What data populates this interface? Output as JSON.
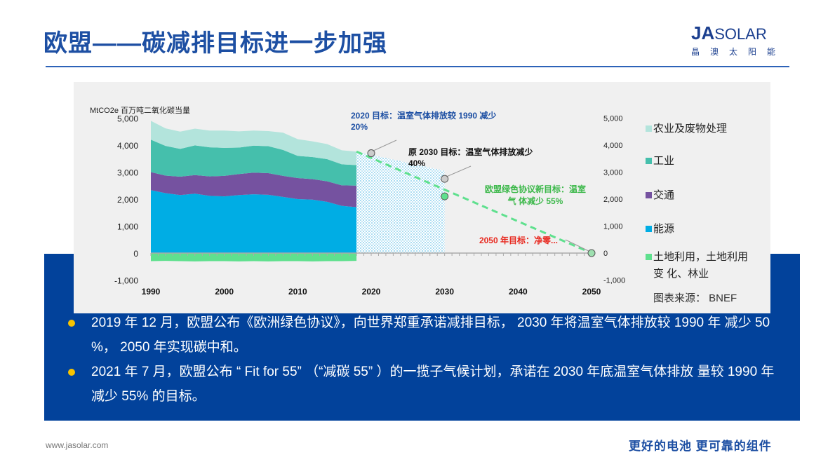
{
  "header": {
    "title": "欧盟——碳减排目标进一步加强",
    "logo_main": "JA",
    "logo_sub": "SOLAR",
    "logo_cn": "晶澳太阳能"
  },
  "chart_data": {
    "type": "area",
    "ylabel": "MtCO2e 百万吨二氧化碳当量",
    "ylim": [
      -1000,
      5000
    ],
    "yticks": [
      "5,000",
      "4,000",
      "3,000",
      "2,000",
      "1,000",
      "0",
      "-1,000"
    ],
    "ytick_values": [
      5000,
      4000,
      3000,
      2000,
      1000,
      0,
      -1000
    ],
    "xticks": [
      "1990",
      "2000",
      "2010",
      "2020",
      "2030",
      "2040",
      "2050"
    ],
    "xtick_values": [
      1990,
      2000,
      2010,
      2020,
      2030,
      2040,
      2050
    ],
    "x": [
      1990,
      1992,
      1994,
      1996,
      1998,
      2000,
      2002,
      2004,
      2006,
      2008,
      2010,
      2012,
      2014,
      2016,
      2018
    ],
    "series": [
      {
        "name": "能源",
        "color": "#00ade4",
        "values": [
          2330,
          2220,
          2150,
          2200,
          2120,
          2100,
          2150,
          2180,
          2160,
          2080,
          2000,
          1980,
          1900,
          1750,
          1700
        ]
      },
      {
        "name": "交通",
        "color": "#7552a0",
        "values": [
          670,
          650,
          680,
          690,
          720,
          760,
          780,
          800,
          800,
          780,
          780,
          760,
          760,
          760,
          800
        ]
      },
      {
        "name": "工业",
        "color": "#45bfac",
        "values": [
          1200,
          1100,
          1030,
          1100,
          1080,
          1040,
          980,
          1000,
          1000,
          960,
          820,
          820,
          820,
          780,
          760
        ]
      },
      {
        "name": "农业及废物处理",
        "color": "#b3e4dc",
        "values": [
          700,
          650,
          640,
          620,
          620,
          640,
          600,
          560,
          560,
          640,
          620,
          580,
          560,
          520,
          500
        ]
      },
      {
        "name": "土地利用，土地利用变 化、林业",
        "color": "#5fe08e",
        "values": [
          -300,
          -290,
          -300,
          -310,
          -300,
          -300,
          -310,
          -300,
          -310,
          -300,
          -300,
          -310,
          -300,
          -300,
          -290
        ]
      }
    ],
    "projection": {
      "x": [
        2018,
        2030
      ],
      "values": [
        3760,
        3050
      ]
    },
    "target_path": {
      "x": [
        2018,
        2050
      ],
      "values": [
        3760,
        0
      ]
    },
    "targets": [
      {
        "year": 2020,
        "value": 3700,
        "color": "#cccccc",
        "label": "2020 目标：温室气体排放较 1990 减少 20%",
        "label_color": "#1d4fa3"
      },
      {
        "year": 2030,
        "value": 2750,
        "color": "#cccccc",
        "label": "原 2030 目标：温室气体排放减少 40%",
        "label_color": "#111111"
      },
      {
        "year": 2030,
        "value": 2100,
        "color": "#5fe08e",
        "label": "欧盟绿色协议新目标：温室气 体减少 55%",
        "label_color": "#3cb84a"
      },
      {
        "year": 2050,
        "value": 0,
        "color": "#9ee0b0",
        "label": "2050 年目标：净零...",
        "label_color": "#e8281e"
      }
    ],
    "source": "图表来源：  BNEF"
  },
  "legend_items": [
    "农业及废物处理",
    "工业",
    "交通",
    "能源",
    "土地利用，土地利用",
    "变 化、林业"
  ],
  "bullets": [
    "2019 年 12 月，欧盟公布《欧洲绿色协议》，向世界郑重承诺减排目标， 2030 年将温室气体排放较 1990 年 减少 50 %， 2050 年实现碳中和。",
    "2021 年 7 月，欧盟公布 “ Fit  for  55”  （“减碳 55” ）的一揽子气候计划，承诺在 2030 年底温室气体排放 量较 1990 年减少 55% 的目标。"
  ],
  "footer": {
    "url": "www.jasolar.com",
    "slogan": "更好的电池 更可靠的组件"
  }
}
